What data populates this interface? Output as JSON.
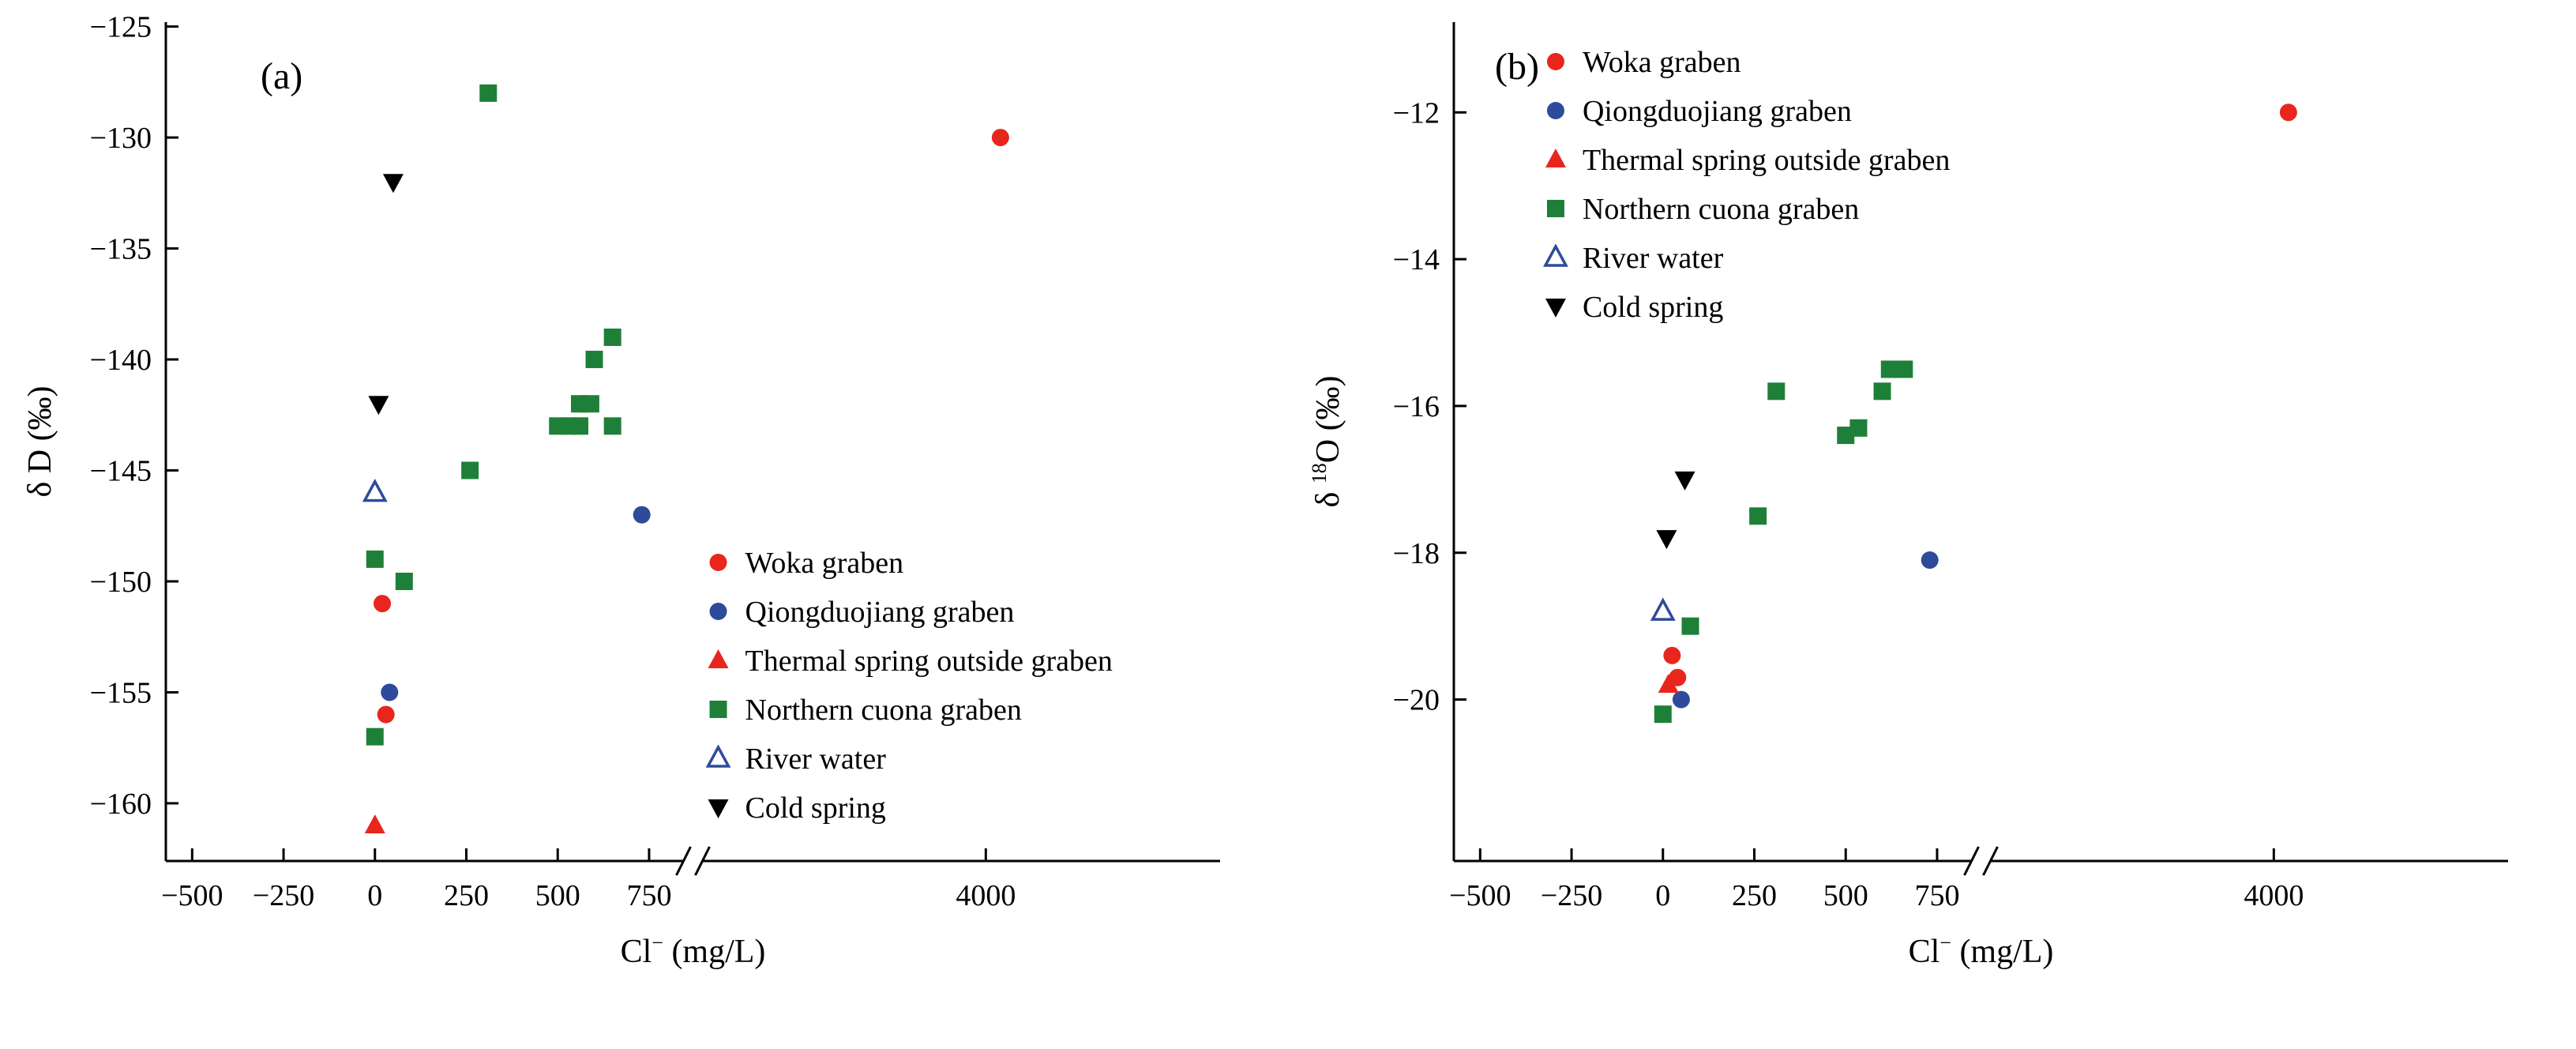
{
  "figure": {
    "background": "#ffffff",
    "panel_a_label": "(a)",
    "panel_b_label": "(b)"
  },
  "colors": {
    "red": "#e8261d",
    "blue": "#2e4b9b",
    "green": "#1e8038",
    "black": "#000000",
    "axis": "#000000"
  },
  "legend_items": [
    {
      "label": "Woka graben",
      "symbol": "circle",
      "fill": "#e8261d",
      "stroke": "#e8261d"
    },
    {
      "label": "Qiongduojiang graben",
      "symbol": "circle",
      "fill": "#2e4b9b",
      "stroke": "#2e4b9b"
    },
    {
      "label": "Thermal spring outside graben",
      "symbol": "triangle-up",
      "fill": "#e8261d",
      "stroke": "#e8261d"
    },
    {
      "label": "Northern cuona graben",
      "symbol": "square",
      "fill": "#1e8038",
      "stroke": "#1e8038"
    },
    {
      "label": "River water",
      "symbol": "triangle-up-open",
      "fill": "none",
      "stroke": "#2e4b9b"
    },
    {
      "label": "Cold spring",
      "symbol": "triangle-down",
      "fill": "#000000",
      "stroke": "#000000"
    }
  ],
  "chart_data": [
    {
      "type": "scatter",
      "panel_label": "(a)",
      "panel_label_pos": {
        "x": 330,
        "y": 112
      },
      "title": "",
      "xlabel": "Cl− (mg/L)",
      "ylabel": "δ D (‰)",
      "x_label_parts": [
        {
          "t": "Cl"
        },
        {
          "t": "−",
          "sup": true
        },
        {
          "t": " (mg/L)"
        }
      ],
      "y_label_parts": [
        {
          "t": "δ D (‰)"
        }
      ],
      "grid": false,
      "x_axis": {
        "break_frac": 0.5,
        "segments": [
          {
            "domain": [
              -572,
              870
            ],
            "frac": [
              0,
              0.5
            ]
          },
          {
            "domain": [
              3000,
              4800
            ],
            "frac": [
              0.5,
              1
            ]
          }
        ],
        "ticks": [
          [
            -500,
            -250,
            0,
            250,
            500,
            750
          ],
          [
            4000
          ]
        ]
      },
      "y_axis": {
        "domain": [
          -162.6,
          -124.8
        ],
        "ticks": [
          -125,
          -130,
          -135,
          -140,
          -145,
          -150,
          -155,
          -160
        ]
      },
      "legend": {
        "fx": 0.524,
        "y0": 712,
        "dy": 62,
        "position": "inside-lower-middle"
      },
      "series": [
        {
          "name": "Woka graben",
          "points": [
            [
              4050,
              -130
            ],
            [
              20,
              -151
            ],
            [
              30,
              -156
            ]
          ]
        },
        {
          "name": "Qiongduojiang graben",
          "points": [
            [
              730,
              -147
            ],
            [
              40,
              -155
            ]
          ]
        },
        {
          "name": "Thermal spring outside graben",
          "points": [
            [
              0,
              -161
            ]
          ]
        },
        {
          "name": "Northern cuona graben",
          "points": [
            [
              310,
              -128
            ],
            [
              650,
              -139
            ],
            [
              600,
              -140
            ],
            [
              560,
              -142
            ],
            [
              590,
              -142
            ],
            [
              500,
              -143
            ],
            [
              530,
              -143
            ],
            [
              560,
              -143
            ],
            [
              650,
              -143
            ],
            [
              260,
              -145
            ],
            [
              0,
              -149
            ],
            [
              80,
              -150
            ],
            [
              0,
              -157
            ]
          ]
        },
        {
          "name": "River water",
          "points": [
            [
              0,
              -146
            ]
          ]
        },
        {
          "name": "Cold spring",
          "points": [
            [
              50,
              -132
            ],
            [
              10,
              -142
            ]
          ]
        }
      ]
    },
    {
      "type": "scatter",
      "panel_label": "(b)",
      "panel_label_pos": {
        "x": 262,
        "y": 100
      },
      "title": "",
      "xlabel": "Cl− (mg/L)",
      "ylabel": "δ 18O (‰)",
      "x_label_parts": [
        {
          "t": "Cl"
        },
        {
          "t": "−",
          "sup": true
        },
        {
          "t": " (mg/L)"
        }
      ],
      "y_label_parts": [
        {
          "t": "δ "
        },
        {
          "t": "18",
          "sup": true
        },
        {
          "t": "O (‰)"
        }
      ],
      "grid": false,
      "x_axis": {
        "break_frac": 0.5,
        "segments": [
          {
            "domain": [
              -572,
              870
            ],
            "frac": [
              0,
              0.5
            ]
          },
          {
            "domain": [
              3000,
              4800
            ],
            "frac": [
              0.5,
              1
            ]
          }
        ],
        "ticks": [
          [
            -500,
            -250,
            0,
            250,
            500,
            750
          ],
          [
            4000
          ]
        ]
      },
      "y_axis": {
        "domain": [
          -22.2,
          -10.77
        ],
        "ticks": [
          -12,
          -14,
          -16,
          -18,
          -20
        ]
      },
      "legend": {
        "fx": 0.0966,
        "y0": 78,
        "dy": 62,
        "position": "inside-upper-left"
      },
      "series": [
        {
          "name": "Woka graben",
          "points": [
            [
              4050,
              -12
            ],
            [
              25,
              -19.4
            ],
            [
              40,
              -19.7
            ]
          ]
        },
        {
          "name": "Qiongduojiang graben",
          "points": [
            [
              730,
              -18.1
            ],
            [
              50,
              -20
            ]
          ]
        },
        {
          "name": "Thermal spring outside graben",
          "points": [
            [
              15,
              -19.8
            ]
          ]
        },
        {
          "name": "Northern cuona graben",
          "points": [
            [
              310,
              -15.8
            ],
            [
              620,
              -15.5
            ],
            [
              660,
              -15.5
            ],
            [
              600,
              -15.8
            ],
            [
              500,
              -16.4
            ],
            [
              535,
              -16.3
            ],
            [
              260,
              -17.5
            ],
            [
              75,
              -19
            ],
            [
              0,
              -20.2
            ]
          ]
        },
        {
          "name": "River water",
          "points": [
            [
              0,
              -18.8
            ]
          ]
        },
        {
          "name": "Cold spring",
          "points": [
            [
              60,
              -17
            ],
            [
              10,
              -17.8
            ]
          ]
        }
      ]
    }
  ]
}
